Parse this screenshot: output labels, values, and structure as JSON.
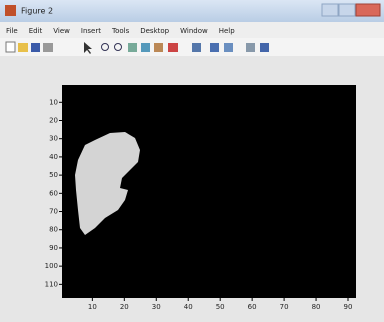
{
  "window": {
    "title": "Figure 2",
    "menu": [
      "File",
      "Edit",
      "View",
      "Insert",
      "Tools",
      "Desktop",
      "Window",
      "Help"
    ]
  },
  "axes": {
    "xlim": [
      0.5,
      92.5
    ],
    "ylim": [
      0.5,
      117.5
    ],
    "reversed_y": true,
    "xticks": [
      10,
      20,
      30,
      40,
      50,
      60,
      70,
      80,
      90
    ],
    "yticks": [
      10,
      20,
      30,
      40,
      50,
      60,
      70,
      80,
      90,
      100,
      110
    ]
  }
}
